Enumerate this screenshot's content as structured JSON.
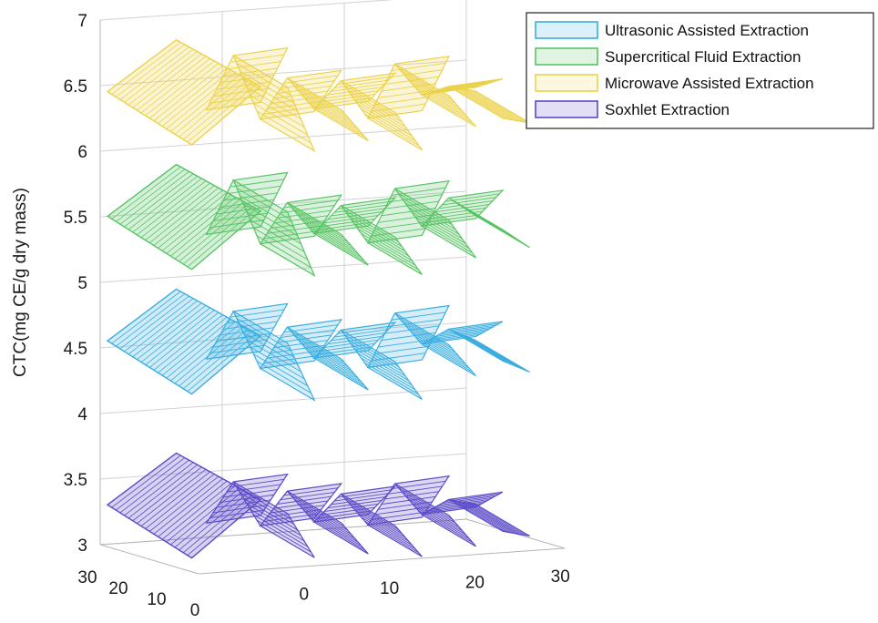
{
  "chart_data": {
    "type": "surface",
    "ylabel": "CTC(mg CE/g dry mass)",
    "zlim": [
      3,
      7
    ],
    "z_ticks": [
      "3",
      "3.5",
      "4",
      "4.5",
      "5",
      "5.5",
      "6",
      "6.5",
      "7"
    ],
    "x_ticks": [
      "0",
      "10",
      "20",
      "30"
    ],
    "y_ticks": [
      "0",
      "10",
      "20",
      "30"
    ],
    "grid": true,
    "legend_position": "top-right",
    "series": [
      {
        "name": "Ultrasonic Assisted Extraction",
        "color": "#3aaee0",
        "values": [
          4.4,
          4.75,
          4.3,
          4.6,
          4.35,
          4.55,
          4.25,
          4.65,
          4.4,
          4.5
        ]
      },
      {
        "name": "Supercritical Fluid Extraction",
        "color": "#58c464",
        "values": [
          5.35,
          5.75,
          5.25,
          5.55,
          5.3,
          5.5,
          5.2,
          5.6,
          5.3,
          5.5
        ]
      },
      {
        "name": "Microwave Assisted Extraction",
        "color": "#ecd24a",
        "values": [
          6.3,
          6.7,
          6.2,
          6.5,
          6.25,
          6.45,
          6.15,
          6.55,
          6.3,
          6.35
        ]
      },
      {
        "name": "Soxhlet Extraction",
        "color": "#5a4ac8",
        "values": [
          3.15,
          3.45,
          3.1,
          3.35,
          3.1,
          3.3,
          3.05,
          3.35,
          3.1,
          3.2
        ]
      }
    ]
  }
}
